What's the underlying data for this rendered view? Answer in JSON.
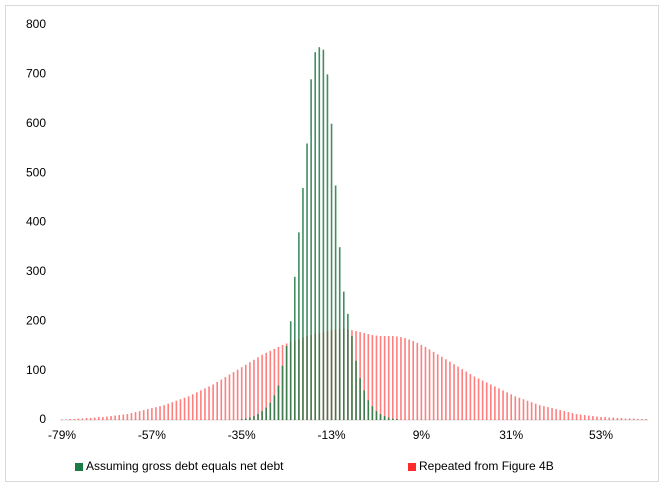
{
  "chart_data": {
    "type": "bar",
    "categories": [
      "-79%",
      null,
      null,
      null,
      null,
      null,
      null,
      null,
      null,
      null,
      null,
      null,
      null,
      null,
      null,
      null,
      null,
      null,
      null,
      null,
      null,
      null,
      "-57%",
      null,
      null,
      null,
      null,
      null,
      null,
      null,
      null,
      null,
      null,
      null,
      null,
      null,
      null,
      null,
      null,
      null,
      null,
      null,
      null,
      null,
      "-35%",
      null,
      null,
      null,
      null,
      null,
      null,
      null,
      null,
      null,
      null,
      null,
      null,
      null,
      null,
      null,
      null,
      null,
      null,
      null,
      null,
      null,
      "-13%",
      null,
      null,
      null,
      null,
      null,
      null,
      null,
      null,
      null,
      null,
      null,
      null,
      null,
      null,
      null,
      null,
      null,
      null,
      null,
      null,
      null,
      "9%",
      null,
      null,
      null,
      null,
      null,
      null,
      null,
      null,
      null,
      null,
      null,
      null,
      null,
      null,
      null,
      null,
      null,
      null,
      null,
      null,
      null,
      "31%",
      null,
      null,
      null,
      null,
      null,
      null,
      null,
      null,
      null,
      null,
      null,
      null,
      null,
      null,
      null,
      null,
      null,
      null,
      null,
      null,
      null,
      "53%",
      null,
      null,
      null,
      null,
      null,
      null,
      null,
      null,
      null,
      null,
      null
    ],
    "series": [
      {
        "name": "Repeated from Figure 4B",
        "color": "#ff2a2a",
        "values": [
          1,
          1,
          2,
          2,
          3,
          3,
          4,
          4,
          5,
          6,
          6,
          7,
          8,
          9,
          10,
          11,
          12,
          14,
          16,
          18,
          20,
          22,
          24,
          26,
          28,
          30,
          33,
          36,
          39,
          42,
          45,
          48,
          52,
          56,
          60,
          64,
          68,
          72,
          77,
          82,
          87,
          92,
          97,
          102,
          107,
          112,
          117,
          122,
          127,
          132,
          136,
          140,
          144,
          148,
          152,
          155,
          158,
          161,
          164,
          167,
          170,
          172,
          174,
          176,
          178,
          180,
          182,
          183,
          184,
          185,
          184,
          182,
          180,
          178,
          176,
          174,
          172,
          171,
          170,
          170,
          170,
          170,
          169,
          168,
          166,
          163,
          160,
          156,
          152,
          148,
          143,
          138,
          133,
          128,
          123,
          118,
          113,
          108,
          103,
          98,
          93,
          88,
          84,
          80,
          76,
          72,
          68,
          64,
          60,
          56,
          52,
          48,
          45,
          42,
          39,
          36,
          33,
          30,
          28,
          26,
          24,
          22,
          20,
          18,
          16,
          14,
          12,
          11,
          10,
          9,
          8,
          7,
          6,
          6,
          5,
          5,
          4,
          4,
          3,
          3,
          3,
          2,
          2,
          2
        ]
      },
      {
        "name": "Assuming gross debt equals net debt",
        "color": "#1e7a45",
        "values": [
          0,
          0,
          0,
          0,
          0,
          0,
          0,
          0,
          0,
          0,
          0,
          0,
          0,
          0,
          0,
          0,
          0,
          0,
          0,
          0,
          0,
          0,
          0,
          0,
          0,
          0,
          0,
          0,
          0,
          0,
          0,
          0,
          0,
          0,
          0,
          0,
          0,
          0,
          0,
          0,
          0,
          0,
          0,
          0,
          2,
          3,
          5,
          8,
          12,
          18,
          25,
          35,
          50,
          70,
          110,
          150,
          200,
          290,
          380,
          470,
          560,
          690,
          745,
          755,
          750,
          700,
          600,
          475,
          350,
          260,
          215,
          170,
          120,
          85,
          60,
          40,
          28,
          18,
          12,
          8,
          5,
          3,
          2,
          0,
          0,
          0,
          0,
          0,
          0,
          0,
          0,
          0,
          0,
          0,
          0,
          0,
          0,
          0,
          0,
          0,
          0,
          0,
          0,
          0,
          0,
          0,
          0,
          0,
          0,
          0,
          0,
          0,
          0,
          0,
          0,
          0,
          0,
          0,
          0,
          0,
          0,
          0,
          0,
          0,
          0,
          0,
          0,
          0,
          0,
          0,
          0,
          0,
          0,
          0,
          0,
          0,
          0,
          0,
          0,
          0,
          0,
          0,
          0,
          0
        ]
      }
    ],
    "ylim": [
      0,
      800
    ],
    "yticks": [
      0,
      100,
      200,
      300,
      400,
      500,
      600,
      700,
      800
    ],
    "grid": false,
    "legend": "bottom"
  }
}
